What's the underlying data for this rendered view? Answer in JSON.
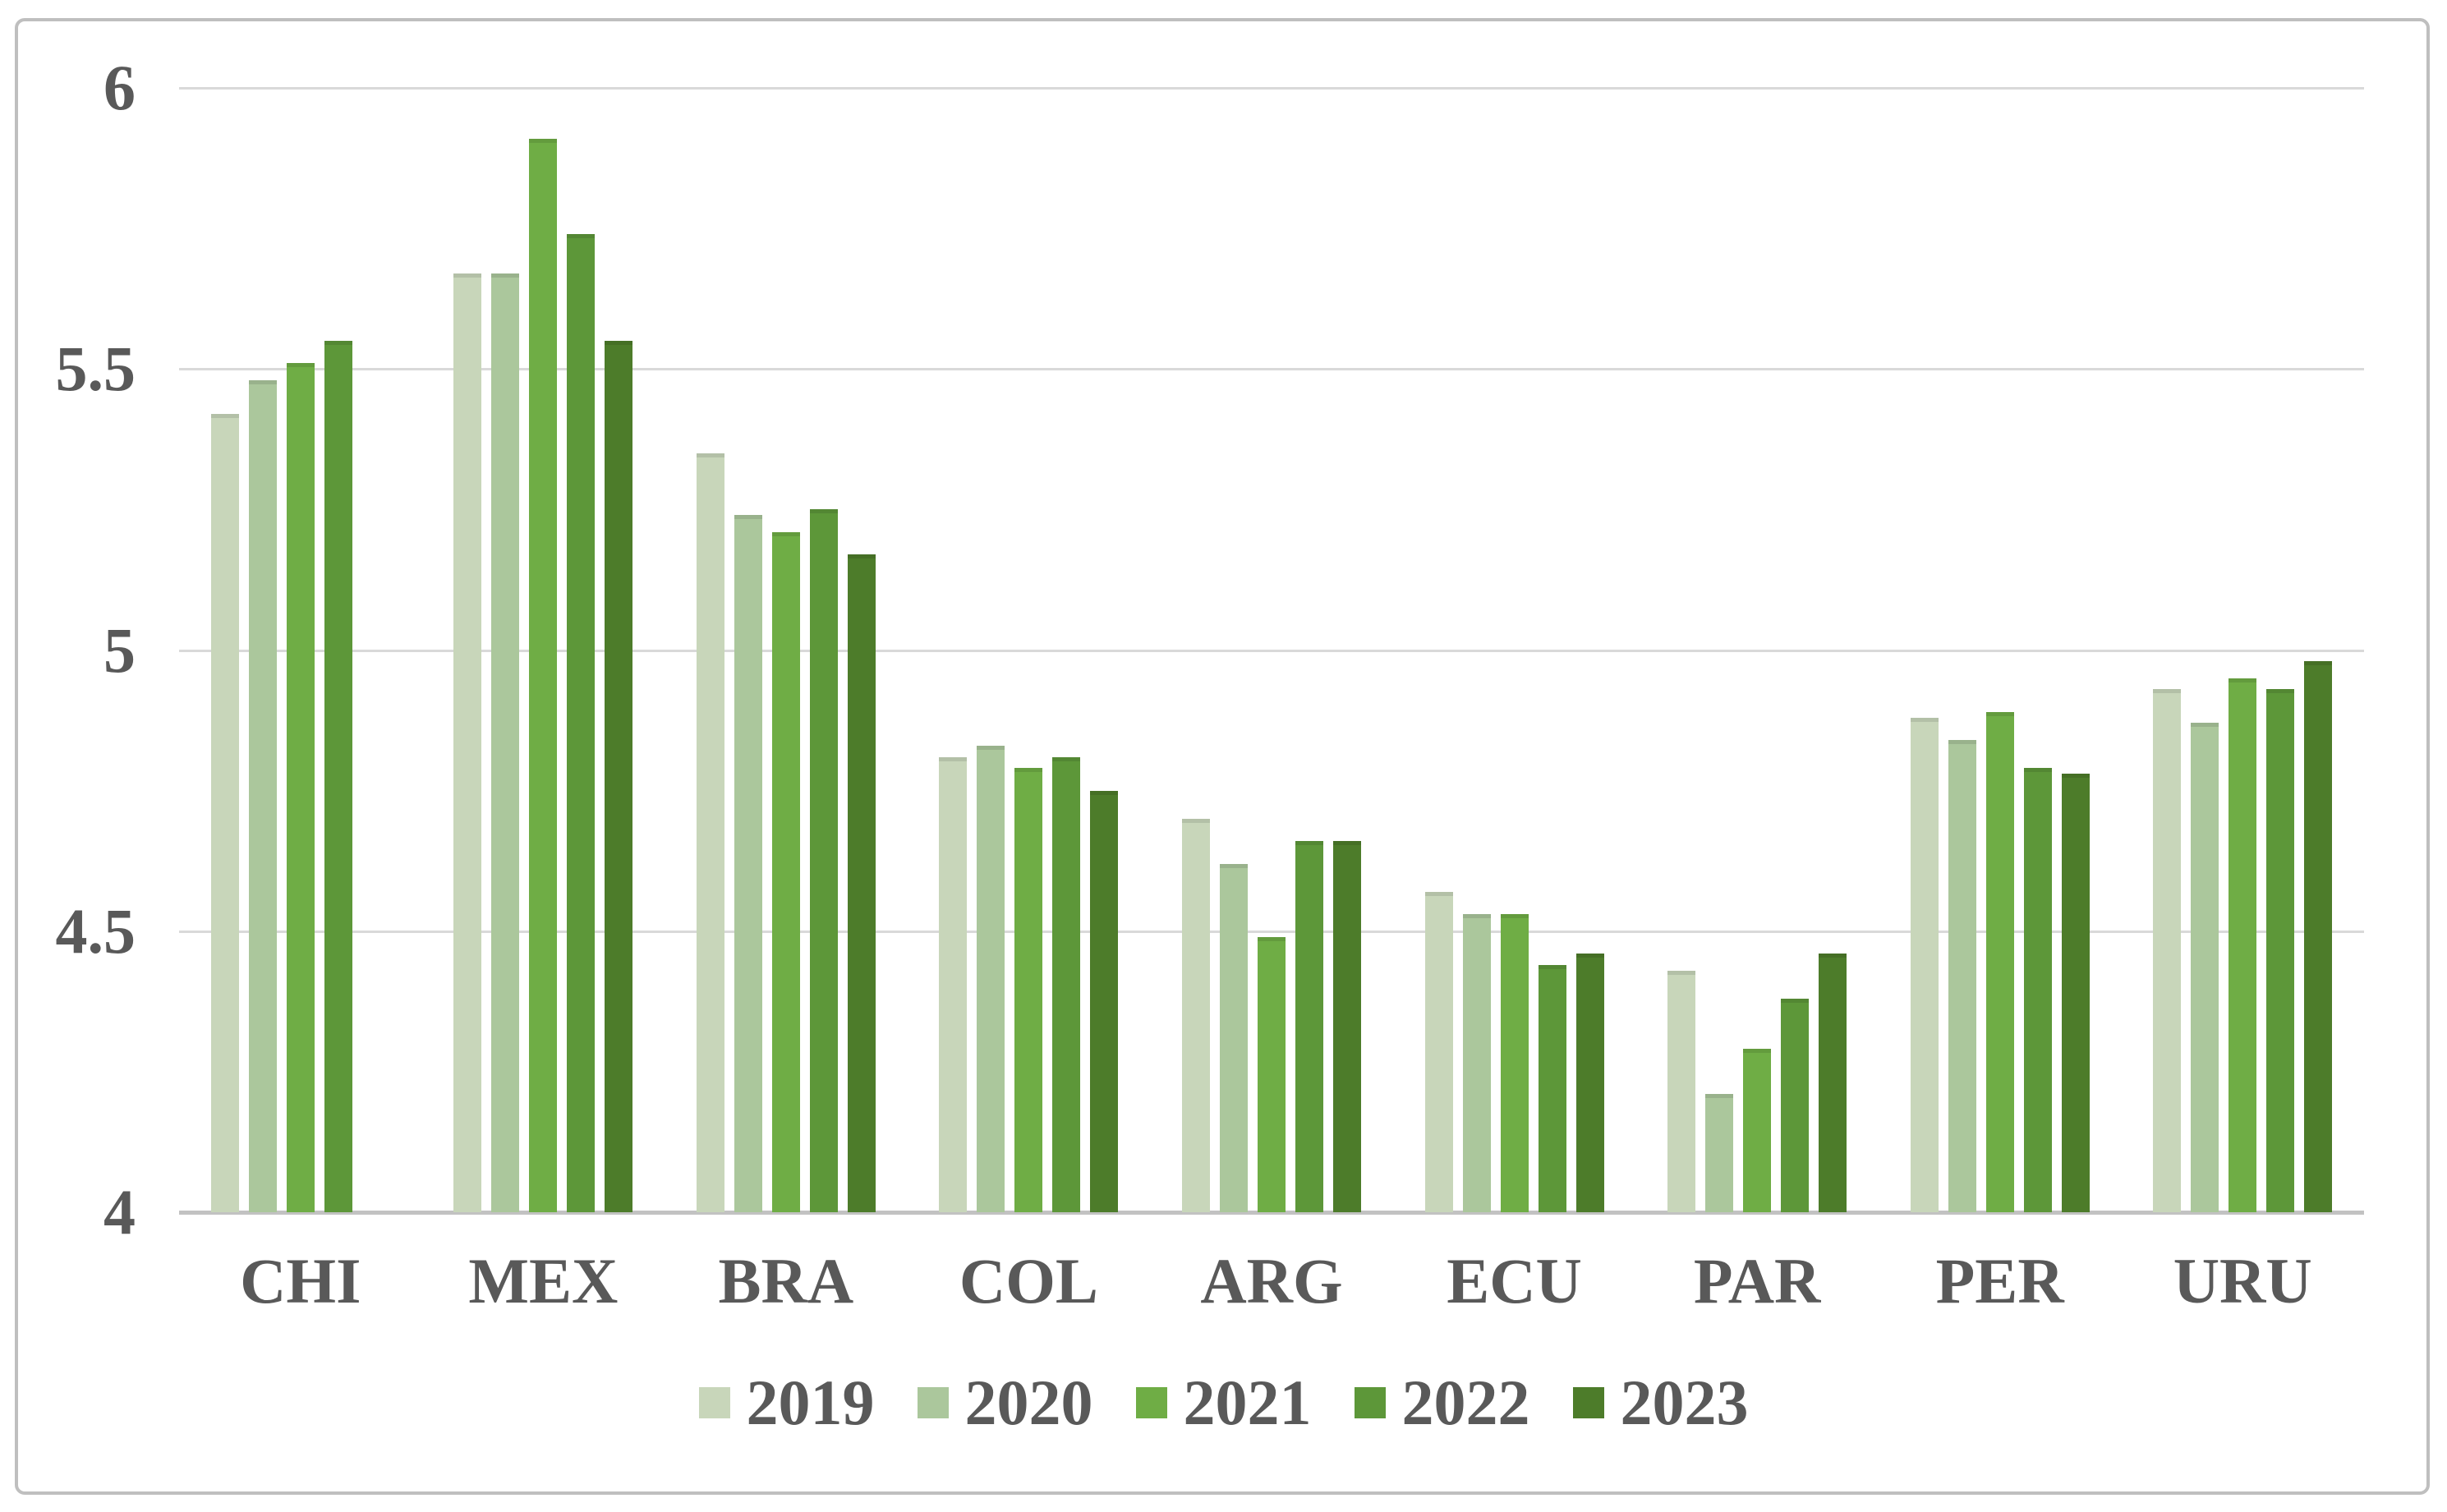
{
  "chart_data": {
    "type": "bar",
    "title": "",
    "categories": [
      "CHI",
      "MEX",
      "BRA",
      "COL",
      "ARG",
      "ECU",
      "PAR",
      "PER",
      "URU"
    ],
    "series": [
      {
        "name": "2019",
        "color": "#c8d6ba",
        "values": [
          5.42,
          5.67,
          5.35,
          4.81,
          4.7,
          4.57,
          4.43,
          4.88,
          4.93
        ]
      },
      {
        "name": "2020",
        "color": "#abc79c",
        "values": [
          5.48,
          5.67,
          5.24,
          4.83,
          4.62,
          4.53,
          4.21,
          4.84,
          4.87
        ]
      },
      {
        "name": "2021",
        "color": "#6fad45",
        "values": [
          5.51,
          5.91,
          5.21,
          4.79,
          4.49,
          4.53,
          4.29,
          4.89,
          4.95
        ]
      },
      {
        "name": "2022",
        "color": "#5d9739",
        "values": [
          5.55,
          5.74,
          5.25,
          4.81,
          4.66,
          4.44,
          4.38,
          4.79,
          4.93
        ]
      },
      {
        "name": "2023",
        "color": "#4d7c2a",
        "values": [
          null,
          5.55,
          5.17,
          4.75,
          4.66,
          4.46,
          4.46,
          4.78,
          4.98
        ]
      }
    ],
    "ylim": [
      4,
      6
    ],
    "yticks": [
      4,
      4.5,
      5,
      5.5,
      6
    ],
    "ytick_labels": [
      "4",
      "4.5",
      "5",
      "5.5",
      "6"
    ],
    "grid": true,
    "legend_position": "bottom",
    "legend": [
      "2019",
      "2020",
      "2021",
      "2022",
      "2023"
    ],
    "notes": "grouped vertical bar chart; CHI group has no 2023 bar"
  },
  "palette": {
    "text_color": "#595959",
    "gridline_color": "#d9d9d9",
    "axis_line_color": "#c2c2c2",
    "border_color": "#bfbfbf",
    "background": "#ffffff"
  }
}
